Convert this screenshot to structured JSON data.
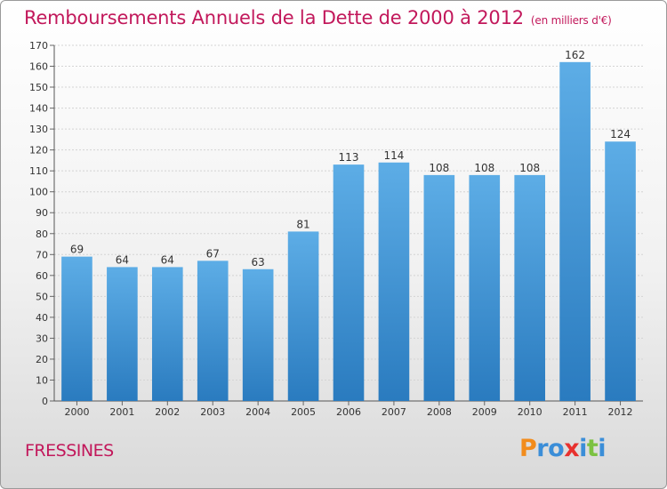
{
  "header": {
    "title": "Remboursements Annuels de la Dette de 2000 à 2012",
    "unit": "(en milliers d'€)"
  },
  "footer": {
    "commune": "FRESSINES",
    "logo_letters": [
      "P",
      "r",
      "o",
      "x",
      "i",
      "t",
      "i"
    ],
    "logo_colors": [
      "#f28c1c",
      "#3b8ed8",
      "#3b8ed8",
      "#e8312e",
      "#3b8ed8",
      "#7cc242",
      "#3b8ed8"
    ]
  },
  "colors": {
    "title": "#c2185b",
    "bar_light": "#5dade6",
    "bar_dark": "#2a7bbf"
  },
  "chart_data": {
    "type": "bar",
    "categories": [
      "2000",
      "2001",
      "2002",
      "2003",
      "2004",
      "2005",
      "2006",
      "2007",
      "2008",
      "2009",
      "2010",
      "2011",
      "2012"
    ],
    "values": [
      69,
      64,
      64,
      67,
      63,
      81,
      113,
      114,
      108,
      108,
      108,
      162,
      124
    ],
    "title": "Remboursements Annuels de la Dette de 2000 à 2012",
    "subtitle": "(en milliers d'€)",
    "ylim": [
      0,
      170
    ],
    "yticks": [
      0,
      10,
      20,
      30,
      40,
      50,
      60,
      70,
      80,
      90,
      100,
      110,
      120,
      130,
      140,
      150,
      160,
      170
    ],
    "grid": true,
    "data_labels": true
  }
}
